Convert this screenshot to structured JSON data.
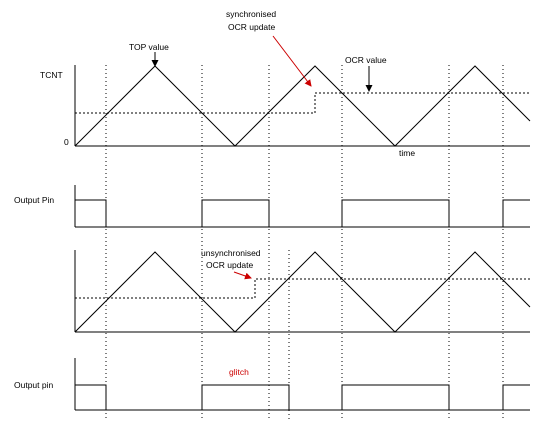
{
  "colors": {
    "trace": "#000000",
    "annotation_red": "#cc0000",
    "background": "#ffffff"
  },
  "top_diagram": {
    "y_axis_label": "TCNT",
    "zero_label": "0",
    "top_value_label": "TOP value",
    "sync_update_label_line1": "synchronised",
    "sync_update_label_line2": "OCR update",
    "ocr_value_label": "OCR value",
    "time_label": "time",
    "output_label": "Output Pin"
  },
  "bottom_diagram": {
    "unsync_update_label_line1": "unsynchronised",
    "unsync_update_label_line2": "OCR update",
    "output_label": "Output pin",
    "glitch_label": "glitch"
  }
}
